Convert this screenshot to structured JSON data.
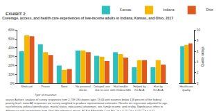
{
  "chart_data": [
    {
      "type": "bar",
      "title": "Coverage, access, and health care experiences of low-income adults in Indiana, Kansas, and Ohio, 2017",
      "categories": [
        "Medicaid",
        "Private",
        "None",
        "No personal\ndoctor",
        "Delayed care\ndue to cost",
        "Had trouble\nwith medical bills",
        "Helped by\nthe ACA",
        "Hurt by\nthe ACA"
      ],
      "series": [
        {
          "name": "Kansas",
          "color": "#2bbfbf",
          "values": [
            36,
            44,
            20,
            37,
            31,
            35,
            18,
            18
          ]
        },
        {
          "name": "Indiana",
          "color": "#f5b700",
          "values": [
            54,
            35,
            15,
            37,
            30,
            33,
            26,
            26
          ]
        },
        {
          "name": "Ohio",
          "color": "#e05a1e",
          "values": [
            53,
            32,
            16,
            35,
            25,
            29,
            26,
            21
          ]
        }
      ],
      "ylim": [
        0,
        60
      ],
      "yticks": [
        {
          "value": 0,
          "label": "0%"
        },
        {
          "value": 10,
          "label": "10%"
        },
        {
          "value": 20,
          "label": "20%"
        },
        {
          "value": 30,
          "label": "30%"
        },
        {
          "value": 40,
          "label": "40%"
        },
        {
          "value": 50,
          "label": "50%"
        },
        {
          "value": 60,
          "label": "60%"
        }
      ],
      "grid": false,
      "legend": "top",
      "annotations": [
        "EXHIBIT 2",
        "Type of insurance",
        "source Authors' analysis of survey responses from 2,739 US citizens ages 19-64 with incomes below 138 percent of the federal\npoverty level. notes All responses are survey weighted to produce representative estimates. Results are regression adjusted for age,\nrace/ethnicity, political identification, marital status, educational attainment, sex, family income, and rurality. Significance refers to\ndifferences with respondents from Ohio (the reference group). ACA is Affordable Care Act. *p < 0.10 **p < 0.05 ***p < 0.01"
      ]
    },
    {
      "type": "bar",
      "categories": [
        "Healthcare\nquality"
      ],
      "series": [
        {
          "name": "Kansas",
          "color": "#2bbfbf",
          "values": [
            7.0
          ]
        },
        {
          "name": "Indiana",
          "color": "#f5b700",
          "values": [
            7.2
          ]
        },
        {
          "name": "Ohio",
          "color": "#e05a1e",
          "values": [
            7.5
          ]
        }
      ],
      "ylabel": "Quality ratings",
      "ylim": [
        0,
        10
      ],
      "yticks": [
        0,
        2,
        4,
        6,
        8,
        10
      ],
      "grid": false
    }
  ]
}
